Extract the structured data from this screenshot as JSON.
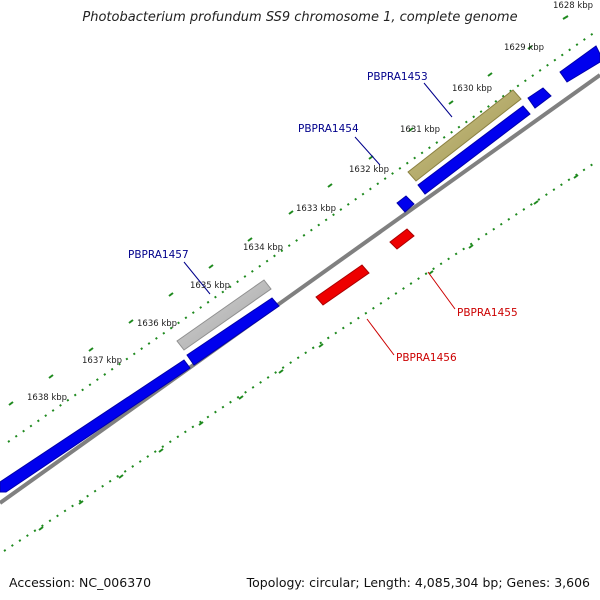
{
  "title": "Photobacterium profundum SS9 chromosome 1, complete genome",
  "footer": {
    "accession": "Accession: NC_006370",
    "summary": "Topology: circular; Length: 4,085,304 bp; Genes: 3,606"
  },
  "scale": {
    "unit": "kbp",
    "labels": [
      "1628 kbp",
      "1629 kbp",
      "1630 kbp",
      "1631 kbp",
      "1632 kbp",
      "1633 kbp",
      "1634 kbp",
      "1635 kbp",
      "1636 kbp",
      "1637 kbp",
      "1638 kbp"
    ]
  },
  "genes": [
    {
      "label": "PBPRA1453",
      "strand": "+",
      "color": "#00008b"
    },
    {
      "label": "PBPRA1454",
      "strand": "+",
      "color": "#00008b"
    },
    {
      "label": "PBPRA1455",
      "strand": "-",
      "color": "#cc0000"
    },
    {
      "label": "PBPRA1456",
      "strand": "-",
      "color": "#cc0000"
    },
    {
      "label": "PBPRA1457",
      "strand": "+",
      "color": "#00008b"
    }
  ],
  "colors": {
    "forward_gene": "#0000ee",
    "reverse_gene": "#ee0000",
    "backbone": "#808080",
    "tick": "#1f8a1f",
    "highlight_tan": "#b8ae68",
    "highlight_gray": "#bcbcbc"
  }
}
